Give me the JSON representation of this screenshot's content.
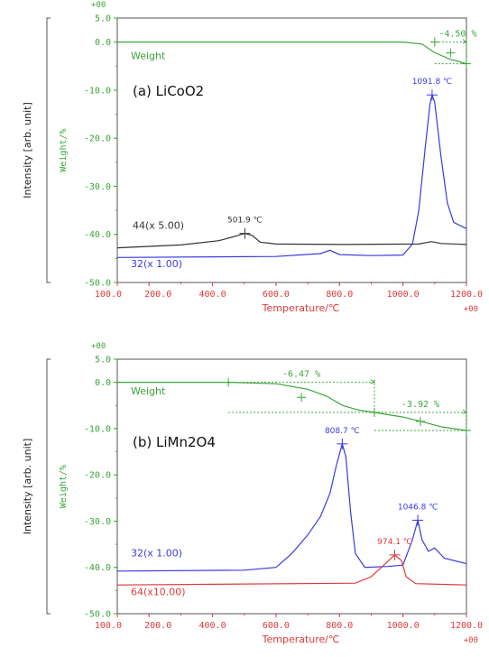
{
  "chart_data": [
    {
      "type": "line",
      "panel_label": "(a) LiCoO2",
      "exponent_top": "+00",
      "exponent_bottom": "+00",
      "y_outer_label": "Intensity [arb. unit]",
      "ylabel": "Weight/%",
      "xlabel": "Temperature/℃",
      "xlim": [
        100,
        1200
      ],
      "ylim": [
        -50,
        5
      ],
      "x_ticks": [
        "100.0",
        "200.0",
        "400.0",
        "600.0",
        "800.0",
        "1000.0",
        "1200.0"
      ],
      "y_ticks": [
        "5.0",
        "0.0",
        "-10.0",
        "-20.0",
        "-30.0",
        "-40.0",
        "-50.0"
      ],
      "series": [
        {
          "name": "Weight",
          "color": "#3aa63a",
          "dashed": false,
          "points": [
            [
              100,
              0
            ],
            [
              600,
              0
            ],
            [
              900,
              0
            ],
            [
              1000,
              0
            ],
            [
              1060,
              -0.4
            ],
            [
              1100,
              -2.2
            ],
            [
              1150,
              -3.6
            ],
            [
              1200,
              -4.5
            ]
          ]
        },
        {
          "name": "44(x 5.00)",
          "color": "#333333",
          "dashed": false,
          "points": [
            [
              100,
              -42.8
            ],
            [
              300,
              -42.2
            ],
            [
              420,
              -41.3
            ],
            [
              470,
              -40.4
            ],
            [
              502,
              -39.8
            ],
            [
              525,
              -40.2
            ],
            [
              550,
              -41.6
            ],
            [
              600,
              -42.0
            ],
            [
              800,
              -42.1
            ],
            [
              1050,
              -42.0
            ],
            [
              1090,
              -41.5
            ],
            [
              1120,
              -41.9
            ],
            [
              1200,
              -42.1
            ]
          ]
        },
        {
          "name": "32(x 1.00)",
          "color": "#3a3ae0",
          "dashed": false,
          "points": [
            [
              100,
              -44.8
            ],
            [
              600,
              -44.6
            ],
            [
              740,
              -44.0
            ],
            [
              770,
              -43.3
            ],
            [
              800,
              -44.2
            ],
            [
              900,
              -44.4
            ],
            [
              1000,
              -44.3
            ],
            [
              1030,
              -42.0
            ],
            [
              1050,
              -35.0
            ],
            [
              1070,
              -22.0
            ],
            [
              1085,
              -13.0
            ],
            [
              1092,
              -11.0
            ],
            [
              1100,
              -12.5
            ],
            [
              1120,
              -24.0
            ],
            [
              1140,
              -33.5
            ],
            [
              1160,
              -37.5
            ],
            [
              1200,
              -38.8
            ]
          ]
        }
      ],
      "weight_step": {
        "label": "-4.50 %",
        "x_start": 1100,
        "x_end": 1200,
        "y_start": 0,
        "y_end": -4.5
      },
      "annotations": [
        {
          "text": "1091.8 ℃",
          "x": 1091.8,
          "y": -11.0,
          "color": "#3a3ae0"
        },
        {
          "text": "501.9 ℃",
          "x": 501.9,
          "y": -39.8,
          "color": "#333333"
        }
      ]
    },
    {
      "type": "line",
      "panel_label": "(b) LiMn2O4",
      "exponent_top": "+00",
      "exponent_bottom": "+00",
      "y_outer_label": "Intensity [arb. unit]",
      "ylabel": "Weight/%",
      "xlabel": "Temperature/℃",
      "xlim": [
        100,
        1200
      ],
      "ylim": [
        -50,
        5
      ],
      "x_ticks": [
        "100.0",
        "200.0",
        "400.0",
        "600.0",
        "800.0",
        "1000.0",
        "1200.0"
      ],
      "y_ticks": [
        "5.0",
        "0.0",
        "-10.0",
        "-20.0",
        "-30.0",
        "-40.0",
        "-50.0"
      ],
      "series": [
        {
          "name": "Weight",
          "color": "#3aa63a",
          "dashed": false,
          "points": [
            [
              100,
              0
            ],
            [
              450,
              0
            ],
            [
              600,
              -0.3
            ],
            [
              700,
              -1.5
            ],
            [
              760,
              -3.0
            ],
            [
              810,
              -5.0
            ],
            [
              860,
              -6.0
            ],
            [
              910,
              -6.5
            ],
            [
              1000,
              -7.5
            ],
            [
              1060,
              -8.5
            ],
            [
              1120,
              -9.6
            ],
            [
              1200,
              -10.4
            ]
          ]
        },
        {
          "name": "32(x 1.00)",
          "color": "#3a3ae0",
          "dashed": false,
          "points": [
            [
              100,
              -40.8
            ],
            [
              500,
              -40.6
            ],
            [
              600,
              -40.0
            ],
            [
              650,
              -37.0
            ],
            [
              700,
              -33.0
            ],
            [
              740,
              -29.0
            ],
            [
              770,
              -24.0
            ],
            [
              790,
              -18.0
            ],
            [
              808.7,
              -13.3
            ],
            [
              820,
              -16.0
            ],
            [
              835,
              -28.0
            ],
            [
              850,
              -37.0
            ],
            [
              880,
              -40.0
            ],
            [
              950,
              -39.8
            ],
            [
              1000,
              -39.5
            ],
            [
              1030,
              -34.0
            ],
            [
              1046.8,
              -29.8
            ],
            [
              1060,
              -34.0
            ],
            [
              1080,
              -36.5
            ],
            [
              1100,
              -35.8
            ],
            [
              1130,
              -38.0
            ],
            [
              1200,
              -39.2
            ]
          ]
        },
        {
          "name": "64(x10.00)",
          "color": "#e03a3a",
          "dashed": false,
          "points": [
            [
              100,
              -43.8
            ],
            [
              850,
              -43.4
            ],
            [
              900,
              -42.0
            ],
            [
              940,
              -39.5
            ],
            [
              974.1,
              -37.3
            ],
            [
              995,
              -38.5
            ],
            [
              1010,
              -42.0
            ],
            [
              1040,
              -43.5
            ],
            [
              1200,
              -43.8
            ]
          ]
        }
      ],
      "weight_step_1": {
        "label": "-6.47 %",
        "x_start": 450,
        "x_end": 910,
        "y_start": 0,
        "y_end": -6.5
      },
      "weight_step_2": {
        "label": "-3.92 %",
        "x_start": 910,
        "x_end": 1200,
        "y_start": -6.5,
        "y_end": -10.4
      },
      "annotations": [
        {
          "text": "808.7 ℃",
          "x": 808.7,
          "y": -13.3,
          "color": "#3a3ae0"
        },
        {
          "text": "1046.8 ℃",
          "x": 1046.8,
          "y": -29.8,
          "color": "#3a3ae0"
        },
        {
          "text": "974.1 ℃",
          "x": 974.1,
          "y": -37.3,
          "color": "#e03a3a"
        }
      ]
    }
  ],
  "colors": {
    "axis_green": "#3aa63a",
    "axis_red": "#e03a3a",
    "frame": "#555555"
  }
}
